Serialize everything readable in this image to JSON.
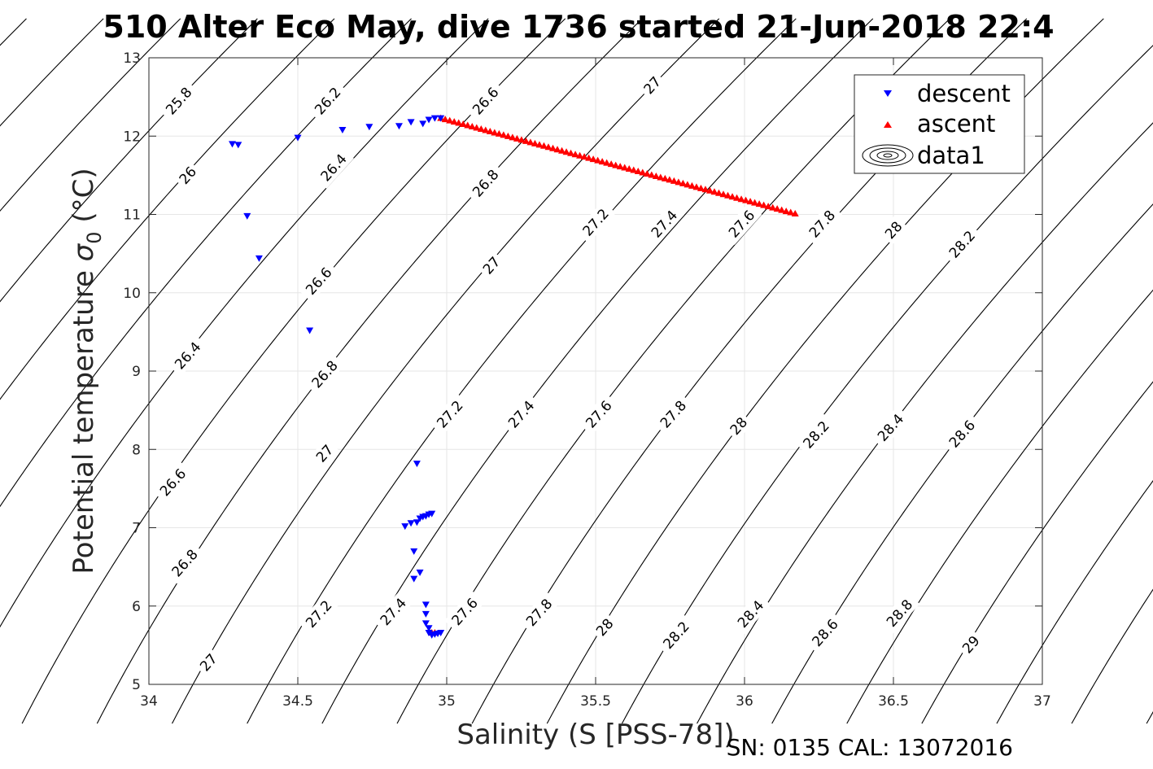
{
  "title": "510 Alter Eco May, dive 1736 started 21-Jun-2018 22:4",
  "footer": "SN: 0135  CAL: 13072016",
  "chart_data": {
    "type": "scatter",
    "xlabel": "Salinity (S [PSS-78])",
    "ylabel": "Potential temperature",
    "ylabel_symbol": "σ",
    "ylabel_subscript": "0",
    "ylabel_unit": "(°C)",
    "xlim": [
      34,
      37
    ],
    "ylim": [
      5,
      13
    ],
    "xticks": [
      34,
      34.5,
      35,
      35.5,
      36,
      36.5,
      37
    ],
    "xtick_labels": [
      "34",
      "34.5",
      "35",
      "35.5",
      "36",
      "36.5",
      "37"
    ],
    "yticks": [
      5,
      6,
      7,
      8,
      9,
      10,
      11,
      12,
      13
    ],
    "ytick_labels": [
      "5",
      "6",
      "7",
      "8",
      "9",
      "10",
      "11",
      "12",
      "13"
    ],
    "grid": true,
    "legend_position": "top-right",
    "series": [
      {
        "name": "descent",
        "marker": "triangle-down",
        "color": "#0000ff",
        "points": [
          [
            34.28,
            11.9
          ],
          [
            34.3,
            11.89
          ],
          [
            34.33,
            10.98
          ],
          [
            34.37,
            10.44
          ],
          [
            34.5,
            11.98
          ],
          [
            34.54,
            9.52
          ],
          [
            34.65,
            12.08
          ],
          [
            34.74,
            12.12
          ],
          [
            34.84,
            12.13
          ],
          [
            34.88,
            12.18
          ],
          [
            34.92,
            12.16
          ],
          [
            34.94,
            12.21
          ],
          [
            34.96,
            12.23
          ],
          [
            34.98,
            12.23
          ],
          [
            34.9,
            7.82
          ],
          [
            34.86,
            7.02
          ],
          [
            34.88,
            7.06
          ],
          [
            34.9,
            7.07
          ],
          [
            34.91,
            7.12
          ],
          [
            34.92,
            7.14
          ],
          [
            34.93,
            7.15
          ],
          [
            34.94,
            7.17
          ],
          [
            34.95,
            7.18
          ],
          [
            34.89,
            6.7
          ],
          [
            34.91,
            6.43
          ],
          [
            34.89,
            6.35
          ],
          [
            34.93,
            6.02
          ],
          [
            34.93,
            5.9
          ],
          [
            34.93,
            5.78
          ],
          [
            34.94,
            5.72
          ],
          [
            34.94,
            5.66
          ],
          [
            34.95,
            5.63
          ],
          [
            34.96,
            5.64
          ],
          [
            34.97,
            5.65
          ],
          [
            34.98,
            5.66
          ]
        ]
      },
      {
        "name": "ascent",
        "marker": "triangle-up",
        "color": "#ff0000",
        "start": [
          34.98,
          12.23
        ],
        "end": [
          36.17,
          11.01
        ],
        "count": 80,
        "extra_points": [
          [
            34.95,
            5.66
          ],
          [
            34.96,
            5.66
          ]
        ]
      },
      {
        "name": "data1",
        "marker": "contour",
        "color": "#000000"
      }
    ],
    "contours": {
      "levels": [
        25.8,
        26,
        26.2,
        26.4,
        26.6,
        26.8,
        27,
        27.2,
        27.4,
        27.6,
        27.8,
        28,
        28.2,
        28.4,
        28.6,
        28.8,
        29
      ],
      "labels": [
        {
          "text": "25.8",
          "s": 34.1,
          "t": 12.45
        },
        {
          "text": "26.2",
          "s": 34.6,
          "t": 12.45
        },
        {
          "text": "26.6",
          "s": 35.13,
          "t": 12.45
        },
        {
          "text": "27",
          "s": 35.69,
          "t": 12.65
        },
        {
          "text": "26",
          "s": 34.13,
          "t": 11.5
        },
        {
          "text": "26.4",
          "s": 34.62,
          "t": 11.6
        },
        {
          "text": "26.8",
          "s": 35.13,
          "t": 11.4
        },
        {
          "text": "27.2",
          "s": 35.5,
          "t": 10.9
        },
        {
          "text": "27.4",
          "s": 35.73,
          "t": 10.88
        },
        {
          "text": "27.6",
          "s": 35.99,
          "t": 10.88
        },
        {
          "text": "27.8",
          "s": 36.26,
          "t": 10.88
        },
        {
          "text": "28",
          "s": 36.5,
          "t": 10.8
        },
        {
          "text": "28.2",
          "s": 36.73,
          "t": 10.62
        },
        {
          "text": "27",
          "s": 35.15,
          "t": 10.35
        },
        {
          "text": "26.6",
          "s": 34.57,
          "t": 10.15
        },
        {
          "text": "26.4",
          "s": 34.13,
          "t": 9.2
        },
        {
          "text": "26.8",
          "s": 34.59,
          "t": 8.96
        },
        {
          "text": "27.2",
          "s": 35.01,
          "t": 8.45
        },
        {
          "text": "27.4",
          "s": 35.25,
          "t": 8.45
        },
        {
          "text": "27.6",
          "s": 35.51,
          "t": 8.45
        },
        {
          "text": "27.8",
          "s": 35.76,
          "t": 8.45
        },
        {
          "text": "28",
          "s": 35.98,
          "t": 8.3
        },
        {
          "text": "28.2",
          "s": 36.24,
          "t": 8.19
        },
        {
          "text": "28.4",
          "s": 36.49,
          "t": 8.28
        },
        {
          "text": "28.6",
          "s": 36.73,
          "t": 8.2
        },
        {
          "text": "27",
          "s": 34.59,
          "t": 7.95
        },
        {
          "text": "26.6",
          "s": 34.08,
          "t": 7.58
        },
        {
          "text": "26.8",
          "s": 34.12,
          "t": 6.55
        },
        {
          "text": "27.2",
          "s": 34.57,
          "t": 5.9
        },
        {
          "text": "27.4",
          "s": 34.82,
          "t": 5.93
        },
        {
          "text": "27.6",
          "s": 35.06,
          "t": 5.93
        },
        {
          "text": "27.8",
          "s": 35.31,
          "t": 5.92
        },
        {
          "text": "28",
          "s": 35.53,
          "t": 5.73
        },
        {
          "text": "28.2",
          "s": 35.77,
          "t": 5.63
        },
        {
          "text": "28.4",
          "s": 36.02,
          "t": 5.9
        },
        {
          "text": "28.6",
          "s": 36.27,
          "t": 5.66
        },
        {
          "text": "28.8",
          "s": 36.52,
          "t": 5.91
        },
        {
          "text": "29",
          "s": 36.76,
          "t": 5.51
        },
        {
          "text": "27",
          "s": 34.2,
          "t": 5.28
        }
      ]
    }
  }
}
